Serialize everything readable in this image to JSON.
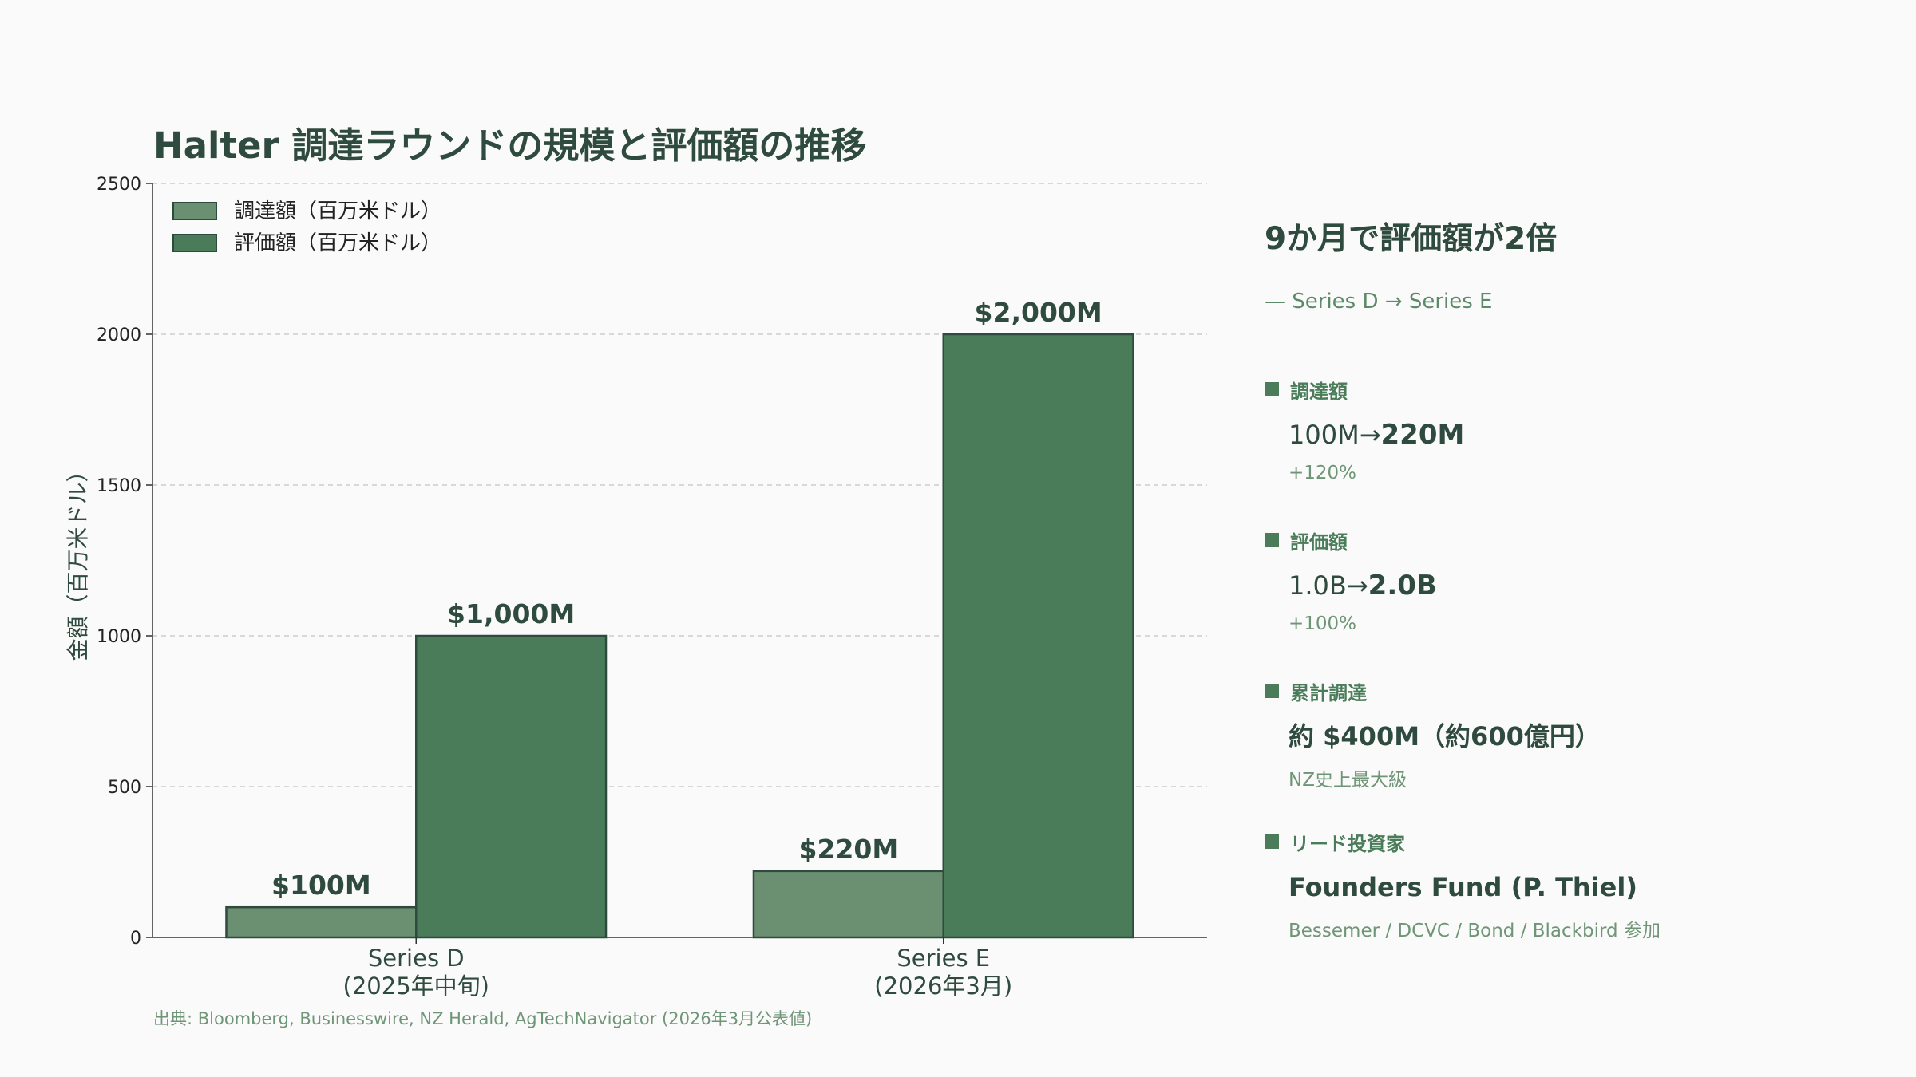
{
  "title": "Halter 調達ラウンドの規模と評価額の推移",
  "source": "出典: Bloomberg, Businesswire, NZ Herald, AgTechNavigator (2026年3月公表値)",
  "colors": {
    "raised": "#6b8f71",
    "valuation": "#4a7c59",
    "edge": "#2f4a3e",
    "text": "#2f4a3e",
    "accent": "#4a7c59"
  },
  "chart_data": {
    "type": "bar",
    "categories": [
      "Series D\n(2025年中旬)",
      "Series E\n(2026年3月)"
    ],
    "series": [
      {
        "name": "調達額（百万米ドル）",
        "values": [
          100,
          220
        ],
        "labels": [
          "$100M",
          "$220M"
        ]
      },
      {
        "name": "評価額（百万米ドル）",
        "values": [
          1000,
          2000
        ],
        "labels": [
          "$1,000M",
          "$2,000M"
        ]
      }
    ],
    "xlabel": "",
    "ylabel": "金額（百万米ドル）",
    "ylim": [
      0,
      2500
    ],
    "yticks": [
      0,
      500,
      1000,
      1500,
      2000,
      2500
    ],
    "grid": true,
    "legend_position": "top-left"
  },
  "panel": {
    "title": "9か月で評価額が2倍",
    "subtitle": "— Series D → Series E",
    "sections": [
      {
        "heading": "調達額",
        "from": "100M",
        "to": "220M",
        "note": "+120%"
      },
      {
        "heading": "評価額",
        "from": "1.0B",
        "to": "2.0B",
        "note": "+100%"
      },
      {
        "heading": "累計調達",
        "value": "約 $400M（約600億円）",
        "note": "NZ史上最大級"
      },
      {
        "heading": "リード投資家",
        "value": "Founders Fund (P. Thiel)",
        "note": "Bessemer / DCVC / Bond / Blackbird 参加"
      }
    ]
  }
}
